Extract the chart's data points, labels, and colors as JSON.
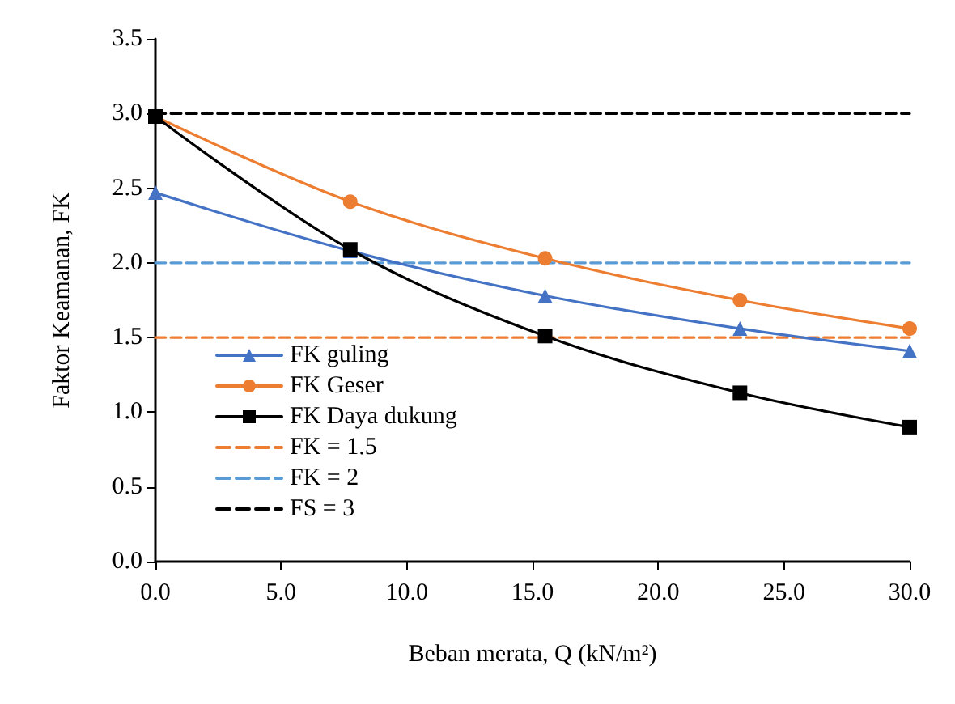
{
  "chart_data": {
    "type": "line",
    "xlabel": "Beban merata, Q (kN/m²)",
    "ylabel": "Faktor Keamanan, FK",
    "xlim": [
      0,
      30
    ],
    "xticks": [
      {
        "value": 0,
        "label": "0.0"
      },
      {
        "value": 5,
        "label": "5.0"
      },
      {
        "value": 10,
        "label": "10.0"
      },
      {
        "value": 15,
        "label": "15.0"
      },
      {
        "value": 20,
        "label": "20.0"
      },
      {
        "value": 25,
        "label": "25.0"
      },
      {
        "value": 30,
        "label": "30.0"
      }
    ],
    "ylim": [
      0,
      3.5
    ],
    "yticks": [
      {
        "value": 0,
        "label": "0.0"
      },
      {
        "value": 0.5,
        "label": "0.5"
      },
      {
        "value": 1,
        "label": "1.0"
      },
      {
        "value": 1.5,
        "label": "1.5"
      },
      {
        "value": 2,
        "label": "2.0"
      },
      {
        "value": 2.5,
        "label": "2.5"
      },
      {
        "value": 3,
        "label": "3.0"
      },
      {
        "value": 3.5,
        "label": "3.5"
      }
    ],
    "grid": false,
    "legend": "bottom left",
    "line_style": "solid",
    "series": [
      {
        "name": "FK guling",
        "color": "#4472c4",
        "marker": "triangle",
        "x": [
          0,
          7.75,
          15.5,
          23.25,
          30
        ],
        "values": [
          2.47,
          2.08,
          1.78,
          1.56,
          1.41
        ]
      },
      {
        "name": "FK Geser",
        "color": "#ed7d31",
        "marker": "circle",
        "x": [
          0,
          7.75,
          15.5,
          23.25,
          30
        ],
        "values": [
          2.98,
          2.41,
          2.03,
          1.75,
          1.56
        ]
      },
      {
        "name": "FK Daya dukung",
        "color": "#000000",
        "marker": "square",
        "x": [
          0,
          7.75,
          15.5,
          23.25,
          30
        ],
        "values": [
          2.98,
          2.09,
          1.51,
          1.13,
          0.9
        ]
      },
      {
        "name": "FK = 1.5",
        "color": "#ed7d31",
        "marker": "none",
        "line_style": "dashed",
        "x": [
          0,
          30
        ],
        "values": [
          1.5,
          1.5
        ]
      },
      {
        "name": "FK = 2",
        "color": "#5b9bd5",
        "marker": "none",
        "line_style": "dashed",
        "x": [
          0,
          30
        ],
        "values": [
          2,
          2
        ]
      },
      {
        "name": "FS = 3",
        "color": "#000000",
        "marker": "none",
        "line_style": "dashed",
        "x": [
          0,
          30
        ],
        "values": [
          3,
          3
        ]
      }
    ]
  }
}
